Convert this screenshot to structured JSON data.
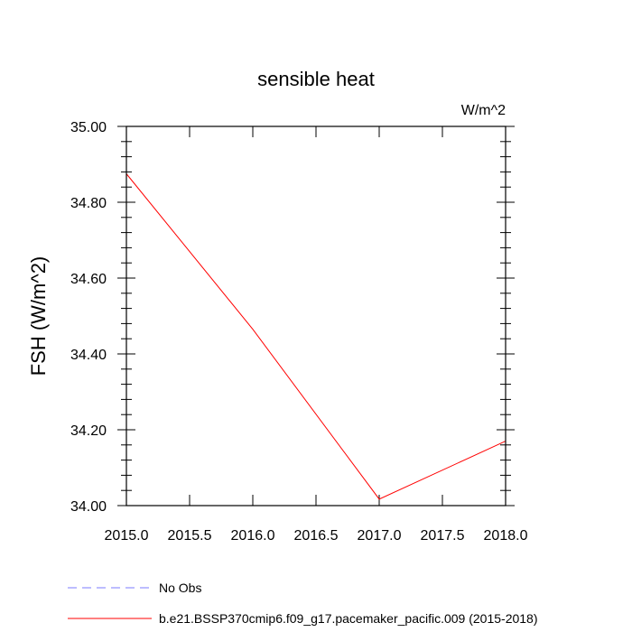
{
  "chart_data": {
    "type": "line",
    "title": "sensible heat",
    "units_label": "W/m^2",
    "ylabel": "FSH  (W/m^2)",
    "xlabel": "",
    "xlim": [
      2015.0,
      2018.0
    ],
    "ylim": [
      34.0,
      35.0
    ],
    "x_ticks": [
      "2015.0",
      "2015.5",
      "2016.0",
      "2016.5",
      "2017.0",
      "2017.5",
      "2018.0"
    ],
    "y_ticks": [
      "34.00",
      "34.20",
      "34.40",
      "34.60",
      "34.80",
      "35.00"
    ],
    "series": [
      {
        "name": "b.e21.BSSP370cmip6.f09_g17.pacemaker_pacific.009 (2015-2018)",
        "color": "#ff0000",
        "style": "solid",
        "x": [
          2015.0,
          2016.0,
          2017.0,
          2018.0
        ],
        "y": [
          34.875,
          34.465,
          34.017,
          34.17
        ]
      }
    ],
    "legend": [
      {
        "label": "No Obs",
        "color": "#7b7bff",
        "style": "dashed"
      },
      {
        "label": "b.e21.BSSP370cmip6.f09_g17.pacemaker_pacific.009 (2015-2018)",
        "color": "#ff0000",
        "style": "solid"
      }
    ],
    "legend_placement": "bottom-left",
    "grid": false
  }
}
